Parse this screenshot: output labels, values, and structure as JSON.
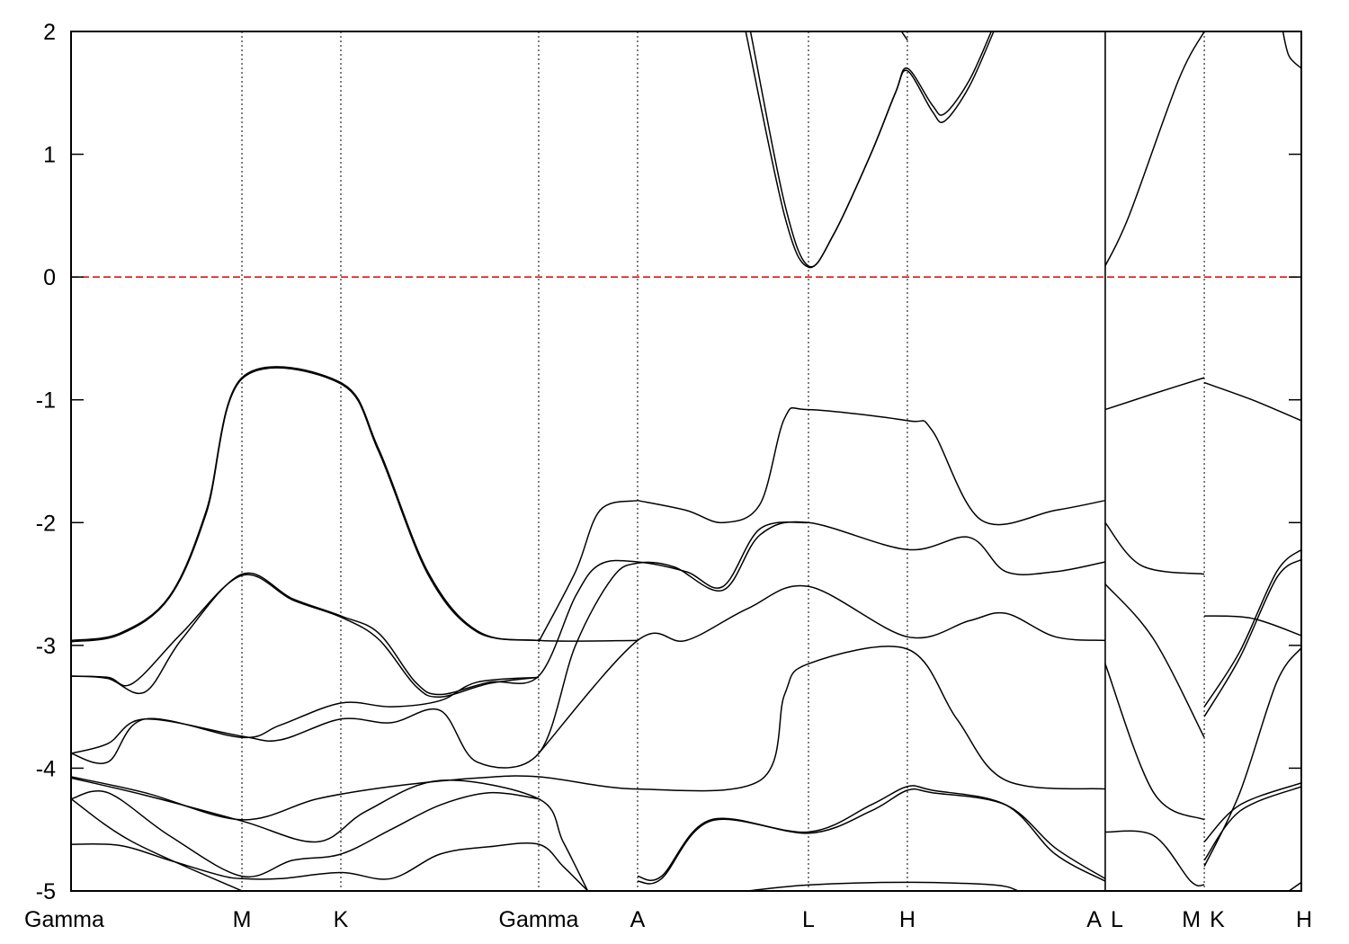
{
  "chart_data": {
    "type": "line",
    "title": "",
    "xlabel": "",
    "ylabel": "",
    "ylim": [
      -5,
      2
    ],
    "yticks": [
      2,
      1,
      0,
      -1,
      -2,
      -3,
      -4,
      -5
    ],
    "kpoints": [
      {
        "label": "Gamma",
        "x": 0.0
      },
      {
        "label": "M",
        "x": 0.1389
      },
      {
        "label": "K",
        "x": 0.2193
      },
      {
        "label": "Gamma",
        "x": 0.3801
      },
      {
        "label": "A",
        "x": 0.4605
      },
      {
        "label": "L",
        "x": 0.5994
      },
      {
        "label": "H",
        "x": 0.6798
      },
      {
        "label": "A",
        "x": 0.8406
      },
      {
        "label": "L",
        "x": 0.8406
      },
      {
        "label": "M",
        "x": 0.9211
      },
      {
        "label": "K",
        "x": 0.9211
      },
      {
        "label": "H",
        "x": 1.0
      }
    ],
    "discontinuities": [
      0.8406,
      0.9211
    ],
    "fermi_level": {
      "value": 0,
      "color": "#e00000"
    },
    "line_color": "#000000",
    "grid": false,
    "series": [
      {
        "values": [
          [
            0.0,
            -2.96
          ],
          [
            0.04,
            -2.9
          ],
          [
            0.08,
            -2.6
          ],
          [
            0.11,
            -1.9
          ],
          [
            0.1389,
            -0.82
          ],
          [
            0.2193,
            -0.86
          ],
          [
            0.25,
            -1.4
          ],
          [
            0.29,
            -2.4
          ],
          [
            0.33,
            -2.88
          ],
          [
            0.3801,
            -2.96
          ],
          [
            0.4605,
            -2.96
          ]
        ]
      },
      {
        "values": [
          [
            0.0,
            -2.97
          ],
          [
            0.04,
            -2.91
          ],
          [
            0.08,
            -2.61
          ],
          [
            0.11,
            -1.92
          ],
          [
            0.1389,
            -0.83
          ],
          [
            0.2193,
            -0.87
          ],
          [
            0.25,
            -1.42
          ],
          [
            0.29,
            -2.42
          ],
          [
            0.33,
            -2.89
          ],
          [
            0.3801,
            -2.96
          ]
        ]
      },
      {
        "values": [
          [
            0.0,
            -3.25
          ],
          [
            0.03,
            -3.27
          ],
          [
            0.06,
            -3.38
          ],
          [
            0.09,
            -2.95
          ],
          [
            0.1389,
            -2.42
          ],
          [
            0.18,
            -2.62
          ],
          [
            0.2193,
            -2.76
          ],
          [
            0.25,
            -2.9
          ],
          [
            0.28,
            -3.3
          ],
          [
            0.3,
            -3.4
          ],
          [
            0.34,
            -3.3
          ],
          [
            0.3801,
            -3.25
          ],
          [
            0.41,
            -2.6
          ],
          [
            0.43,
            -2.34
          ],
          [
            0.4605,
            -2.32
          ],
          [
            0.5,
            -2.4
          ],
          [
            0.53,
            -2.52
          ],
          [
            0.56,
            -2.05
          ],
          [
            0.5994,
            -2.0
          ]
        ]
      },
      {
        "values": [
          [
            0.0,
            -3.25
          ],
          [
            0.03,
            -3.26
          ],
          [
            0.05,
            -3.31
          ],
          [
            0.09,
            -2.9
          ],
          [
            0.1389,
            -2.43
          ],
          [
            0.18,
            -2.63
          ],
          [
            0.2193,
            -2.77
          ],
          [
            0.25,
            -2.95
          ],
          [
            0.28,
            -3.33
          ],
          [
            0.3,
            -3.42
          ],
          [
            0.34,
            -3.31
          ],
          [
            0.3801,
            -3.26
          ]
        ]
      },
      {
        "values": [
          [
            0.0,
            -3.88
          ],
          [
            0.03,
            -3.95
          ],
          [
            0.06,
            -3.6
          ],
          [
            0.1389,
            -3.75
          ],
          [
            0.17,
            -3.65
          ],
          [
            0.2193,
            -3.47
          ],
          [
            0.26,
            -3.5
          ],
          [
            0.3,
            -3.45
          ],
          [
            0.33,
            -3.3
          ],
          [
            0.3801,
            -3.26
          ]
        ]
      },
      {
        "values": [
          [
            0.0,
            -3.88
          ],
          [
            0.03,
            -3.8
          ],
          [
            0.06,
            -3.6
          ],
          [
            0.1389,
            -3.74
          ],
          [
            0.17,
            -3.77
          ],
          [
            0.2193,
            -3.6
          ],
          [
            0.26,
            -3.63
          ],
          [
            0.3,
            -3.53
          ],
          [
            0.33,
            -3.95
          ],
          [
            0.3801,
            -3.88
          ],
          [
            0.41,
            -3.0
          ],
          [
            0.44,
            -2.45
          ],
          [
            0.4605,
            -2.33
          ],
          [
            0.49,
            -2.36
          ],
          [
            0.53,
            -2.55
          ],
          [
            0.56,
            -2.1
          ],
          [
            0.5994,
            -2.0
          ],
          [
            0.6798,
            -2.22
          ],
          [
            0.73,
            -2.12
          ],
          [
            0.76,
            -2.4
          ],
          [
            0.8,
            -2.4
          ],
          [
            0.8406,
            -2.32
          ]
        ]
      },
      {
        "values": [
          [
            0.3801,
            -3.88
          ],
          [
            0.4605,
            -2.96
          ],
          [
            0.5,
            -2.96
          ],
          [
            0.55,
            -2.7
          ],
          [
            0.5994,
            -2.52
          ],
          [
            0.6798,
            -2.93
          ],
          [
            0.73,
            -2.8
          ],
          [
            0.76,
            -2.74
          ],
          [
            0.8,
            -2.93
          ],
          [
            0.8406,
            -2.96
          ]
        ]
      },
      {
        "values": [
          [
            0.4605,
            -1.82
          ],
          [
            0.5,
            -1.9
          ],
          [
            0.53,
            -2.0
          ],
          [
            0.56,
            -1.85
          ],
          [
            0.58,
            -1.15
          ],
          [
            0.5994,
            -1.08
          ],
          [
            0.6798,
            -1.17
          ],
          [
            0.7,
            -1.25
          ],
          [
            0.74,
            -1.98
          ],
          [
            0.8,
            -1.9
          ],
          [
            0.8406,
            -1.82
          ]
        ]
      },
      {
        "values": [
          [
            0.3801,
            -2.97
          ],
          [
            0.41,
            -2.4
          ],
          [
            0.43,
            -1.9
          ],
          [
            0.4605,
            -1.82
          ]
        ]
      },
      {
        "values": [
          [
            0.0,
            -4.07
          ],
          [
            0.06,
            -4.2
          ],
          [
            0.1389,
            -4.42
          ],
          [
            0.2,
            -4.25
          ],
          [
            0.26,
            -4.15
          ],
          [
            0.33,
            -4.08
          ],
          [
            0.3801,
            -4.07
          ],
          [
            0.4605,
            -4.17
          ],
          [
            0.56,
            -4.1
          ],
          [
            0.58,
            -3.4
          ],
          [
            0.5994,
            -3.15
          ],
          [
            0.6798,
            -3.03
          ],
          [
            0.72,
            -3.6
          ],
          [
            0.76,
            -4.1
          ],
          [
            0.8406,
            -4.17
          ]
        ]
      },
      {
        "values": [
          [
            0.0,
            -4.08
          ],
          [
            0.06,
            -4.22
          ],
          [
            0.1389,
            -4.43
          ],
          [
            0.2,
            -4.6
          ],
          [
            0.24,
            -4.35
          ],
          [
            0.3,
            -4.1
          ],
          [
            0.3801,
            -4.25
          ],
          [
            0.4,
            -4.6
          ],
          [
            0.42,
            -5.0
          ]
        ]
      },
      {
        "values": [
          [
            0.0,
            -4.25
          ],
          [
            0.03,
            -4.2
          ],
          [
            0.08,
            -4.55
          ],
          [
            0.1389,
            -4.88
          ],
          [
            0.18,
            -4.75
          ],
          [
            0.2193,
            -4.7
          ],
          [
            0.26,
            -4.5
          ],
          [
            0.3,
            -4.3
          ],
          [
            0.34,
            -4.2
          ],
          [
            0.3801,
            -4.25
          ]
        ]
      },
      {
        "values": [
          [
            0.0,
            -4.25
          ],
          [
            0.05,
            -4.6
          ],
          [
            0.1389,
            -5.0
          ]
        ]
      },
      {
        "values": [
          [
            0.0,
            -4.62
          ],
          [
            0.04,
            -4.63
          ],
          [
            0.08,
            -4.75
          ],
          [
            0.12,
            -4.87
          ],
          [
            0.1389,
            -4.9
          ],
          [
            0.17,
            -4.9
          ],
          [
            0.2193,
            -4.85
          ],
          [
            0.26,
            -4.9
          ],
          [
            0.3,
            -4.7
          ],
          [
            0.34,
            -4.64
          ],
          [
            0.3801,
            -4.62
          ],
          [
            0.4,
            -4.8
          ],
          [
            0.42,
            -5.0
          ]
        ]
      },
      {
        "values": [
          [
            0.4605,
            -4.92
          ],
          [
            0.48,
            -4.9
          ],
          [
            0.52,
            -4.43
          ],
          [
            0.5994,
            -4.52
          ],
          [
            0.65,
            -4.3
          ],
          [
            0.6798,
            -4.15
          ],
          [
            0.7,
            -4.18
          ],
          [
            0.76,
            -4.3
          ],
          [
            0.8,
            -4.7
          ],
          [
            0.8406,
            -4.92
          ]
        ]
      },
      {
        "values": [
          [
            0.4605,
            -4.88
          ],
          [
            0.48,
            -4.88
          ],
          [
            0.52,
            -4.42
          ],
          [
            0.5994,
            -4.53
          ],
          [
            0.65,
            -4.35
          ],
          [
            0.6798,
            -4.18
          ],
          [
            0.7,
            -4.2
          ],
          [
            0.76,
            -4.3
          ],
          [
            0.8,
            -4.65
          ],
          [
            0.8406,
            -4.9
          ]
        ]
      },
      {
        "values": [
          [
            0.55,
            -5.0
          ],
          [
            0.6,
            -4.95
          ],
          [
            0.6798,
            -4.93
          ],
          [
            0.75,
            -4.95
          ],
          [
            0.77,
            -5.0
          ]
        ]
      },
      {
        "values": [
          [
            0.5523,
            2.0
          ],
          [
            0.58,
            0.6
          ],
          [
            0.5994,
            0.09
          ],
          [
            0.62,
            0.35
          ],
          [
            0.65,
            1.0
          ],
          [
            0.67,
            1.5
          ],
          [
            0.6798,
            1.68
          ],
          [
            0.7,
            1.35
          ],
          [
            0.71,
            1.27
          ],
          [
            0.73,
            1.55
          ],
          [
            0.75,
            2.0
          ]
        ]
      },
      {
        "values": [
          [
            0.5484,
            2.0
          ],
          [
            0.58,
            0.5
          ],
          [
            0.5994,
            0.08
          ],
          [
            0.62,
            0.35
          ],
          [
            0.65,
            1.0
          ],
          [
            0.67,
            1.5
          ],
          [
            0.6798,
            1.7
          ],
          [
            0.7,
            1.4
          ],
          [
            0.71,
            1.33
          ],
          [
            0.73,
            1.6
          ],
          [
            0.748,
            2.0
          ]
        ]
      },
      {
        "values": [
          [
            0.6798,
            1.93
          ],
          [
            0.675,
            2.0
          ]
        ]
      },
      {
        "values": [
          [
            0.8406,
            0.09
          ],
          [
            0.86,
            0.5
          ],
          [
            0.9,
            1.6
          ],
          [
            0.9211,
            2.0
          ]
        ]
      },
      {
        "values": [
          [
            0.8406,
            -1.08
          ],
          [
            0.88,
            -0.95
          ],
          [
            0.9211,
            -0.82
          ]
        ]
      },
      {
        "values": [
          [
            0.9211,
            -0.86
          ],
          [
            0.96,
            -1.0
          ],
          [
            1.0,
            -1.17
          ]
        ]
      },
      {
        "values": [
          [
            0.8406,
            -2.0
          ],
          [
            0.87,
            -2.35
          ],
          [
            0.9211,
            -2.42
          ]
        ]
      },
      {
        "values": [
          [
            0.8406,
            -2.5
          ],
          [
            0.88,
            -2.95
          ],
          [
            0.9211,
            -3.75
          ]
        ]
      },
      {
        "values": [
          [
            0.8406,
            -3.15
          ],
          [
            0.88,
            -4.2
          ],
          [
            0.9211,
            -4.42
          ]
        ]
      },
      {
        "values": [
          [
            0.8406,
            -4.52
          ],
          [
            0.88,
            -4.55
          ],
          [
            0.91,
            -4.92
          ],
          [
            0.9211,
            -4.95
          ]
        ]
      },
      {
        "values": [
          [
            0.9211,
            -2.76
          ],
          [
            0.96,
            -2.78
          ],
          [
            1.0,
            -2.92
          ]
        ]
      },
      {
        "values": [
          [
            0.9211,
            -3.5
          ],
          [
            0.95,
            -3.05
          ],
          [
            0.98,
            -2.4
          ],
          [
            1.0,
            -2.22
          ]
        ]
      },
      {
        "values": [
          [
            0.9211,
            -3.58
          ],
          [
            0.95,
            -3.1
          ],
          [
            0.98,
            -2.45
          ],
          [
            1.0,
            -2.3
          ]
        ]
      },
      {
        "values": [
          [
            0.9211,
            -4.6
          ],
          [
            0.95,
            -4.3
          ],
          [
            1.0,
            -4.12
          ]
        ]
      },
      {
        "values": [
          [
            0.9211,
            -4.75
          ],
          [
            0.95,
            -4.35
          ],
          [
            1.0,
            -4.15
          ]
        ]
      },
      {
        "values": [
          [
            0.9211,
            -4.8
          ],
          [
            0.95,
            -4.2
          ],
          [
            0.98,
            -3.3
          ],
          [
            1.0,
            -3.02
          ]
        ]
      },
      {
        "values": [
          [
            0.985,
            2.0
          ],
          [
            0.99,
            1.8
          ],
          [
            1.0,
            1.7
          ]
        ]
      },
      {
        "values": [
          [
            0.99,
            -5.0
          ],
          [
            1.0,
            -4.93
          ]
        ]
      }
    ]
  }
}
